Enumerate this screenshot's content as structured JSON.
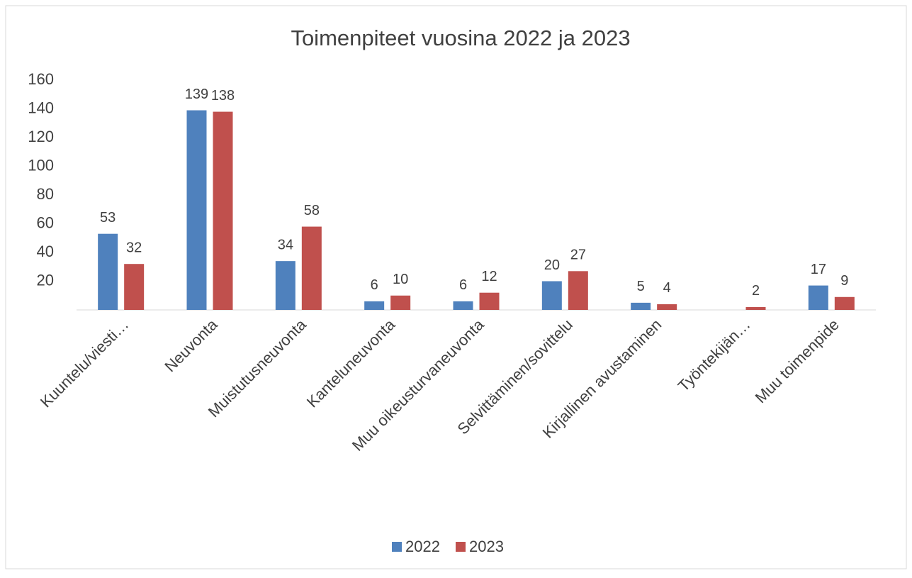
{
  "chart_data": {
    "type": "bar",
    "title": "Toimenpiteet vuosina 2022 ja 2023",
    "categories": [
      "Kuuntelu/viesti…",
      "Neuvonta",
      "Muistutusneuvonta",
      "Kanteluneuvonta",
      "Muu oikeusturvaneuvonta",
      "Selvittäminen/sovittelu",
      "Kirjallinen avustaminen",
      "Työntekijän…",
      "Muu toimenpide"
    ],
    "series": [
      {
        "name": "2022",
        "color": "#4f81bd",
        "values": [
          53,
          139,
          34,
          6,
          6,
          20,
          5,
          null,
          17
        ]
      },
      {
        "name": "2023",
        "color": "#c0504d",
        "values": [
          32,
          138,
          58,
          10,
          12,
          27,
          4,
          2,
          9
        ]
      }
    ],
    "ylim": [
      0,
      160
    ],
    "yticks": [
      20,
      40,
      60,
      80,
      100,
      120,
      140,
      160
    ],
    "grid": false,
    "legend": "bottom"
  }
}
